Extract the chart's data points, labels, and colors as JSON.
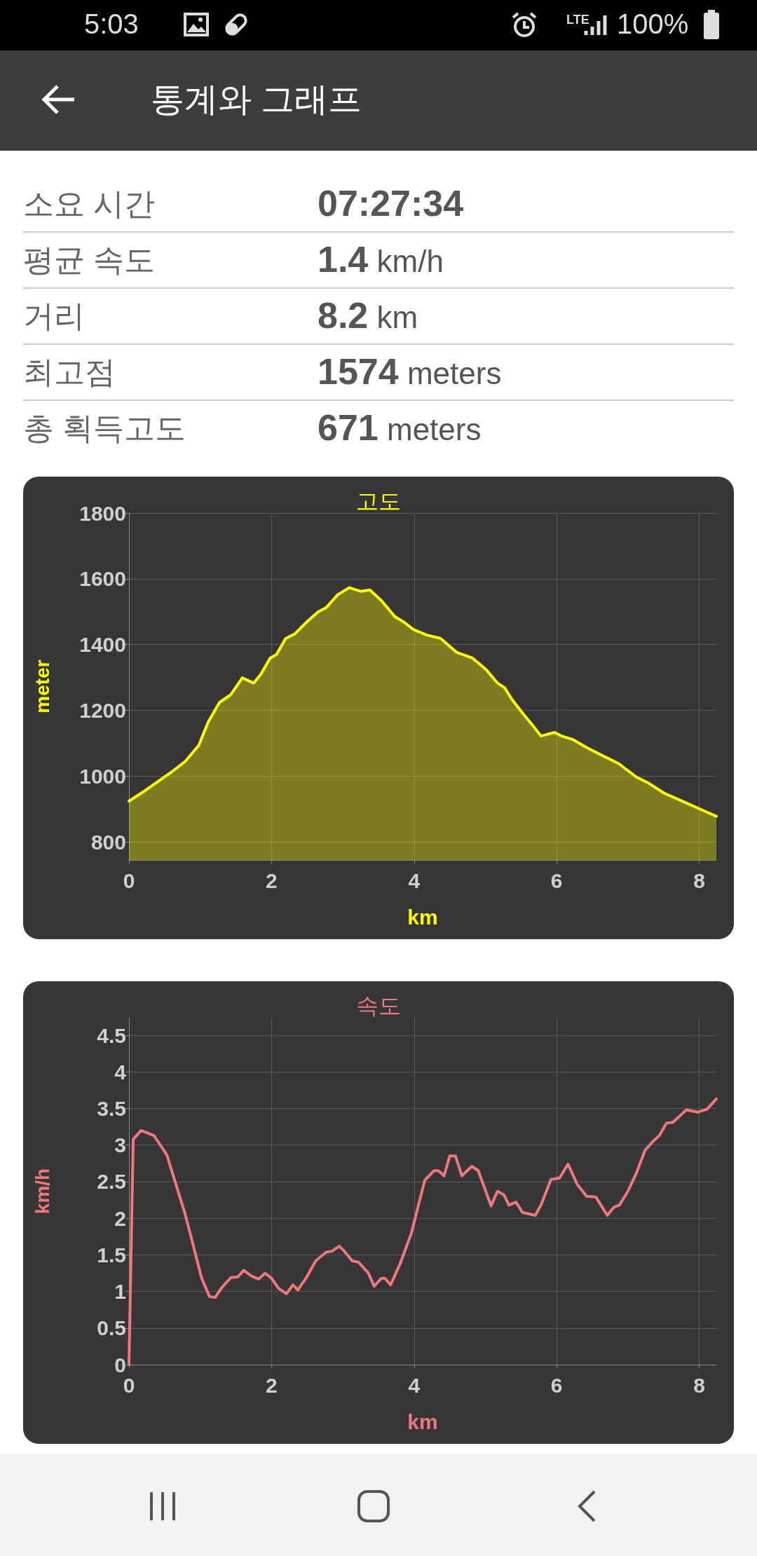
{
  "chart_data": [
    {
      "type": "other",
      "annotations": [
        "5:03",
        "LTE",
        "100%"
      ]
    },
    {
      "type": "other",
      "title": "통계와 그래프",
      "annotations": [
        "소요 시간",
        "07:27:34",
        "평균 속도",
        "1.4 km/h",
        "거리",
        "8.2 km",
        "최고점",
        "1574 meters",
        "총 획득고도",
        "671 meters"
      ]
    },
    {
      "type": "area",
      "title": "고도",
      "xlabel": "km",
      "ylabel": "meter",
      "color": "#ffff00",
      "x": [
        0,
        0.22,
        0.6,
        0.79,
        0.98,
        1.11,
        1.27,
        1.43,
        1.59,
        1.75,
        1.85,
        1.98,
        2.07,
        2.2,
        2.33,
        2.49,
        2.65,
        2.77,
        2.93,
        3.09,
        3.25,
        3.38,
        3.54,
        3.73,
        3.86,
        3.99,
        4.18,
        4.37,
        4.6,
        4.82,
        5.01,
        5.17,
        5.27,
        5.37,
        5.52,
        5.68,
        5.78,
        5.97,
        6.07,
        6.23,
        6.42,
        6.61,
        6.87,
        7.12,
        7.28,
        7.51,
        7.73,
        8.02,
        8.24
      ],
      "values": [
        924,
        955,
        1013,
        1045,
        1094,
        1164,
        1224,
        1248,
        1299,
        1283,
        1310,
        1359,
        1370,
        1419,
        1433,
        1468,
        1499,
        1513,
        1552,
        1573,
        1562,
        1566,
        1534,
        1485,
        1468,
        1446,
        1429,
        1419,
        1376,
        1359,
        1324,
        1283,
        1269,
        1234,
        1192,
        1150,
        1122,
        1133,
        1122,
        1111,
        1087,
        1066,
        1038,
        997,
        980,
        948,
        927,
        899,
        878
      ],
      "xlim": [
        0,
        8.24
      ],
      "xticks": [
        0,
        2,
        4,
        6,
        8
      ],
      "ylim": [
        745,
        1800
      ],
      "yticks": [
        800,
        1000,
        1200,
        1400,
        1600,
        1800
      ],
      "grid": true,
      "marker": "none",
      "line_style": "solid"
    },
    {
      "type": "line",
      "title": "속도",
      "xlabel": "km",
      "ylabel": "km/h",
      "color": "#f07878",
      "x": [
        0,
        0.06,
        0.17,
        0.35,
        0.53,
        0.79,
        1.02,
        1.13,
        1.21,
        1.3,
        1.43,
        1.53,
        1.61,
        1.72,
        1.82,
        1.91,
        2.0,
        2.1,
        2.21,
        2.3,
        2.37,
        2.49,
        2.62,
        2.77,
        2.85,
        2.95,
        3.03,
        3.13,
        3.22,
        3.36,
        3.44,
        3.54,
        3.59,
        3.67,
        3.8,
        3.96,
        4.15,
        4.28,
        4.34,
        4.42,
        4.5,
        4.58,
        4.67,
        4.81,
        4.9,
        5.08,
        5.17,
        5.26,
        5.33,
        5.43,
        5.52,
        5.7,
        5.78,
        5.92,
        6.04,
        6.16,
        6.29,
        6.42,
        6.55,
        6.71,
        6.8,
        6.88,
        7.0,
        7.12,
        7.24,
        7.35,
        7.44,
        7.54,
        7.63,
        7.82,
        7.98,
        8.11,
        8.24
      ],
      "values": [
        0,
        3.08,
        3.2,
        3.13,
        2.87,
        2.05,
        1.18,
        0.93,
        0.92,
        1.05,
        1.19,
        1.2,
        1.29,
        1.21,
        1.17,
        1.25,
        1.18,
        1.04,
        0.97,
        1.09,
        1.02,
        1.19,
        1.42,
        1.54,
        1.55,
        1.62,
        1.54,
        1.42,
        1.4,
        1.25,
        1.07,
        1.18,
        1.18,
        1.09,
        1.37,
        1.79,
        2.52,
        2.65,
        2.65,
        2.58,
        2.85,
        2.85,
        2.58,
        2.71,
        2.65,
        2.17,
        2.37,
        2.32,
        2.18,
        2.22,
        2.08,
        2.04,
        2.18,
        2.53,
        2.55,
        2.74,
        2.46,
        2.3,
        2.29,
        2.04,
        2.15,
        2.18,
        2.37,
        2.62,
        2.93,
        3.05,
        3.13,
        3.3,
        3.31,
        3.48,
        3.45,
        3.49,
        3.63
      ],
      "xlim": [
        0,
        8.24
      ],
      "xticks": [
        0,
        2,
        4,
        6,
        8
      ],
      "ylim": [
        0,
        4.74
      ],
      "yticks": [
        0,
        0.5,
        1,
        1.5,
        2,
        2.5,
        3,
        3.5,
        4,
        4.5
      ],
      "grid": true,
      "marker": "none",
      "line_style": "solid"
    }
  ]
}
